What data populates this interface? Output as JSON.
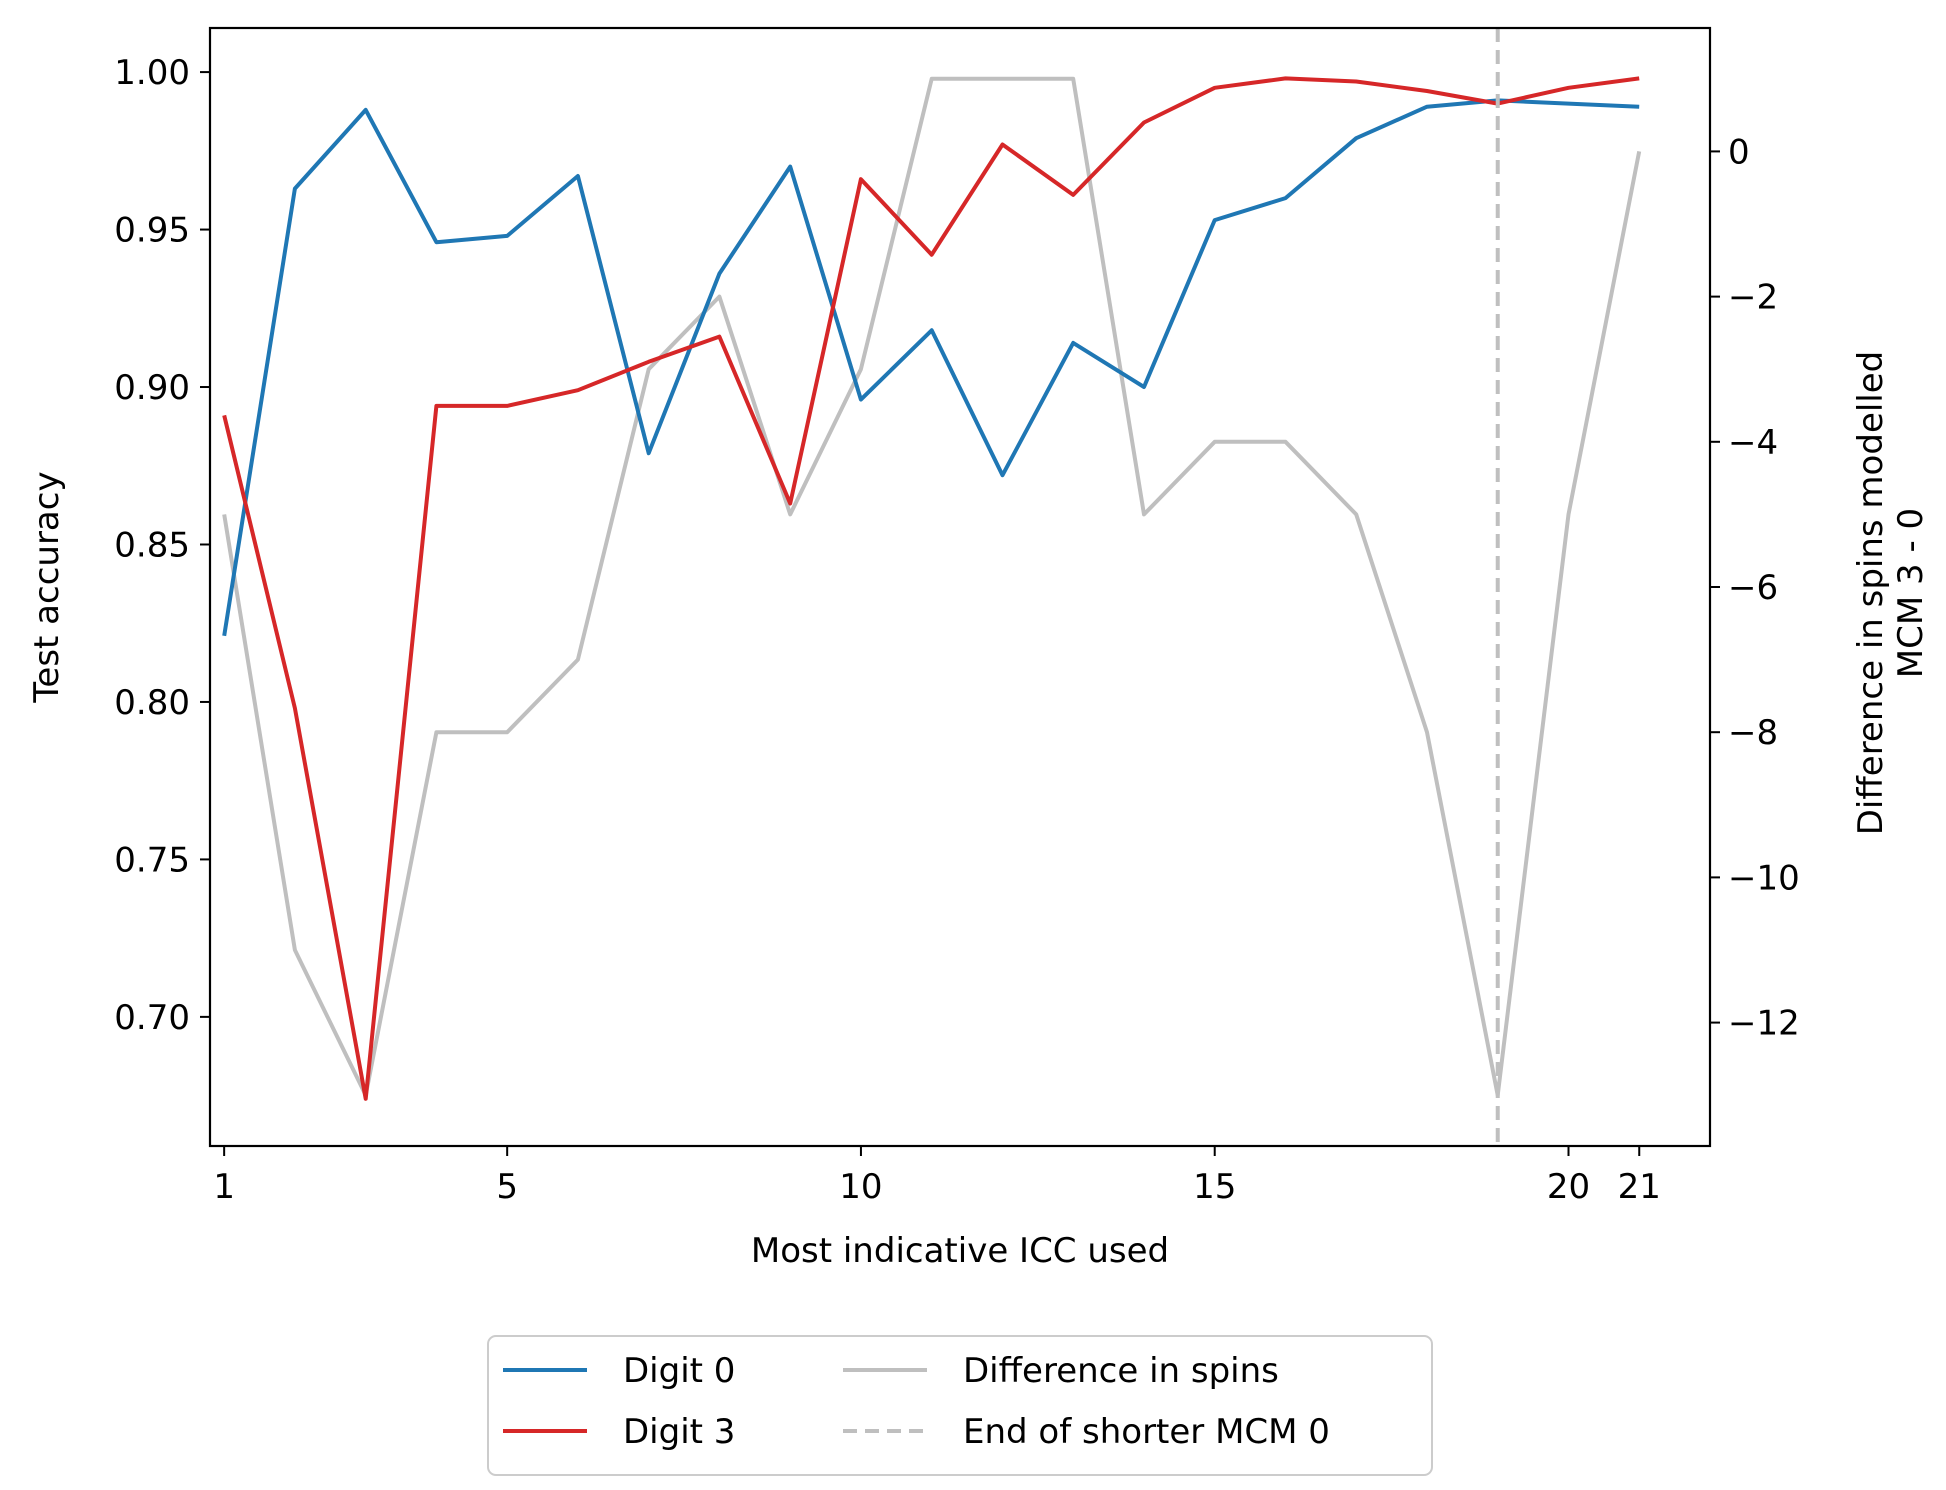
{
  "chart_data": {
    "type": "line",
    "xlabel": "Most indicative ICC used",
    "ylabel": "Test accuracy",
    "y2label_line1": "Difference in spins modelled",
    "y2label_line2": "MCM 3 - 0",
    "x": [
      1,
      2,
      3,
      4,
      5,
      6,
      7,
      8,
      9,
      10,
      11,
      12,
      13,
      14,
      15,
      16,
      17,
      18,
      19,
      20,
      21
    ],
    "xticks": [
      1,
      5,
      10,
      15,
      20,
      21
    ],
    "xlim": [
      0.8,
      22.0
    ],
    "ylim": [
      0.659,
      1.014
    ],
    "yticks": [
      "0.70",
      "0.75",
      "0.80",
      "0.85",
      "0.90",
      "0.95",
      "1.00"
    ],
    "y2lim": [
      -13.7,
      1.7
    ],
    "y2ticks": [
      "0",
      "−2",
      "−4",
      "−6",
      "−8",
      "−10",
      "−12"
    ],
    "series": [
      {
        "name": "Digit 0",
        "axis": "left",
        "color": "#1f77b4",
        "values": [
          0.821,
          0.963,
          0.988,
          0.946,
          0.948,
          0.967,
          0.879,
          0.936,
          0.97,
          0.896,
          0.918,
          0.872,
          0.914,
          0.9,
          0.953,
          0.96,
          0.979,
          0.989,
          0.991,
          0.99,
          0.989
        ]
      },
      {
        "name": "Digit 3",
        "axis": "left",
        "color": "#d62728",
        "values": [
          0.891,
          0.798,
          0.674,
          0.894,
          0.894,
          0.899,
          0.908,
          0.916,
          0.863,
          0.966,
          0.942,
          0.977,
          0.961,
          0.984,
          0.995,
          0.998,
          0.997,
          0.994,
          0.99,
          0.995,
          0.998
        ]
      },
      {
        "name": "Difference in spins",
        "axis": "right",
        "color": "#bfbfbf",
        "values": [
          -5,
          -11,
          -13,
          -8,
          -8,
          -7,
          -3,
          -2,
          -5,
          -3,
          1,
          1,
          1,
          -5,
          -4,
          -4,
          -5,
          -8,
          -13,
          -5,
          0
        ]
      }
    ],
    "vline": {
      "name": "End of shorter MCM 0",
      "x": 19,
      "color": "#bfbfbf",
      "style": "dashed"
    },
    "legend": {
      "position": "bottom-center",
      "columns": 2
    }
  }
}
